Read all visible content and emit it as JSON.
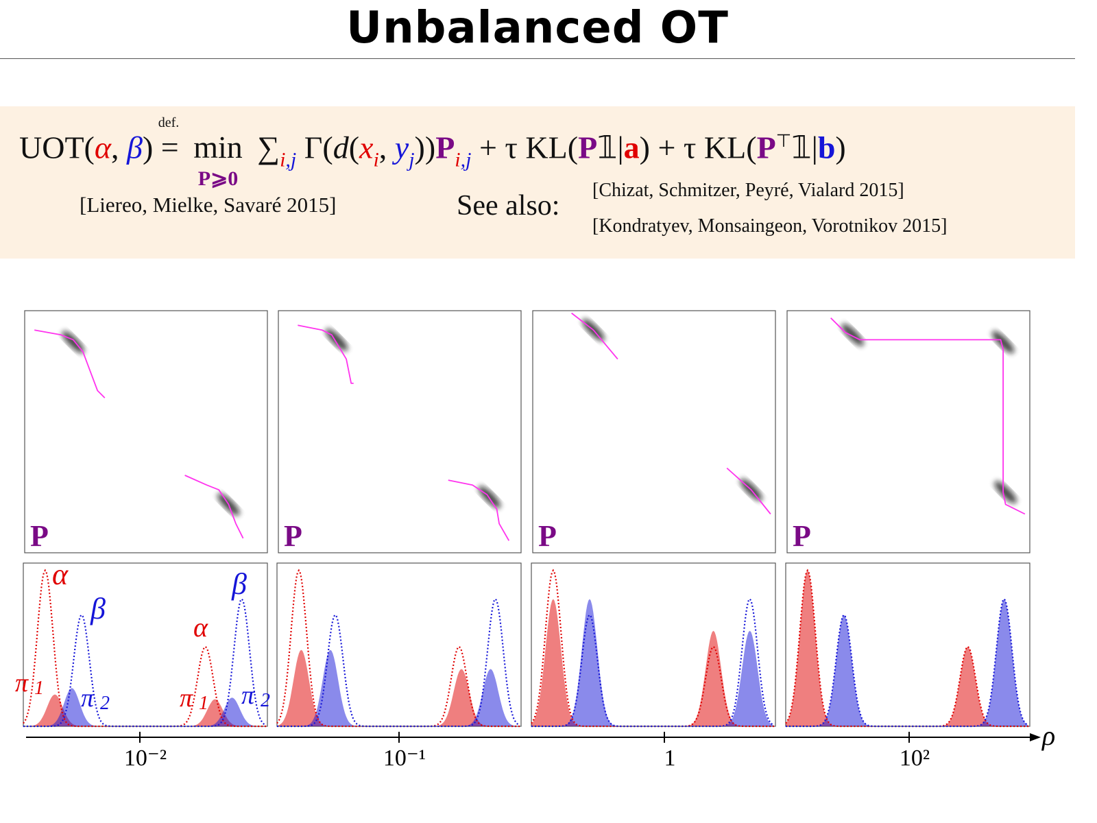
{
  "slide": {
    "title": "Unbalanced OT",
    "formula": {
      "lhs": "UOT(",
      "alpha": "α",
      "comma": ", ",
      "beta": "β",
      "close": ")",
      "def": "def.",
      "eq": "=",
      "min": "min",
      "min_sub": "P⩾0",
      "sum": "∑",
      "sum_sub_i": "i",
      "sum_sub_j": ",j",
      "gamma": " Γ(",
      "d": "d",
      "paren": "(",
      "x": "x",
      "xi": "i",
      "y": "y",
      "yj": "j",
      "close2": "))",
      "P": "P",
      "Pi": "i",
      "Pj": ",j",
      "term1": " + τ KL(",
      "P1": "P",
      "one": "𝟙|",
      "a": "a",
      "close3": ")",
      "term2": " + τ KL(",
      "P2": "P",
      "top": "⊤",
      "one2": "𝟙|",
      "b": "b",
      "close4": ")"
    },
    "references": {
      "main": "[Liereo, Mielke, Savaré 2015]",
      "see_also": "See also:",
      "ref1": "[Chizat, Schmitzer, Peyré, Vialard 2015]",
      "ref2": "[Kondratyev, Monsaingeon, Vorotnikov 2015]"
    }
  },
  "chart_data": {
    "type": "line",
    "xlabel": "ρ",
    "x_ticks": [
      "10⁻²",
      "10⁻¹",
      "1",
      "10²"
    ],
    "plan_label": "P",
    "labels": {
      "alpha": "α",
      "beta": "β",
      "pi1": "π",
      "pi1_sub": "1",
      "pi2": "π",
      "pi2_sub": "2"
    },
    "colors": {
      "alpha": "#e00000",
      "beta": "#1515d8",
      "plan_curve": "#ff33ee",
      "plan_label": "#7a0a86"
    },
    "panels": [
      {
        "rho": "10⁻²",
        "alpha": [
          {
            "c": 0.09,
            "h": 0.98
          },
          {
            "c": 0.75,
            "h": 0.5
          }
        ],
        "beta": [
          {
            "c": 0.24,
            "h": 0.7
          },
          {
            "c": 0.9,
            "h": 0.8
          }
        ],
        "pi1": [
          {
            "c": 0.13,
            "h": 0.2
          },
          {
            "c": 0.79,
            "h": 0.17
          }
        ],
        "pi2": [
          {
            "c": 0.2,
            "h": 0.24
          },
          {
            "c": 0.86,
            "h": 0.18
          }
        ]
      },
      {
        "rho": "10⁻¹",
        "alpha": [
          {
            "c": 0.09,
            "h": 0.98
          },
          {
            "c": 0.75,
            "h": 0.5
          }
        ],
        "beta": [
          {
            "c": 0.24,
            "h": 0.7
          },
          {
            "c": 0.9,
            "h": 0.8
          }
        ],
        "pi1": [
          {
            "c": 0.1,
            "h": 0.48
          },
          {
            "c": 0.76,
            "h": 0.36
          }
        ],
        "pi2": [
          {
            "c": 0.22,
            "h": 0.48
          },
          {
            "c": 0.88,
            "h": 0.36
          }
        ]
      },
      {
        "rho": "1",
        "alpha": [
          {
            "c": 0.09,
            "h": 0.98
          },
          {
            "c": 0.75,
            "h": 0.5
          }
        ],
        "beta": [
          {
            "c": 0.24,
            "h": 0.7
          },
          {
            "c": 0.9,
            "h": 0.8
          }
        ],
        "pi1": [
          {
            "c": 0.09,
            "h": 0.8
          },
          {
            "c": 0.75,
            "h": 0.6
          }
        ],
        "pi2": [
          {
            "c": 0.24,
            "h": 0.8
          },
          {
            "c": 0.9,
            "h": 0.6
          }
        ]
      },
      {
        "rho": "10²",
        "alpha": [
          {
            "c": 0.09,
            "h": 0.98
          },
          {
            "c": 0.75,
            "h": 0.5
          }
        ],
        "beta": [
          {
            "c": 0.24,
            "h": 0.7
          },
          {
            "c": 0.9,
            "h": 0.8
          }
        ],
        "pi1": [
          {
            "c": 0.09,
            "h": 0.98
          },
          {
            "c": 0.75,
            "h": 0.5
          }
        ],
        "pi2": [
          {
            "c": 0.24,
            "h": 0.7
          },
          {
            "c": 0.9,
            "h": 0.8
          }
        ]
      }
    ]
  }
}
